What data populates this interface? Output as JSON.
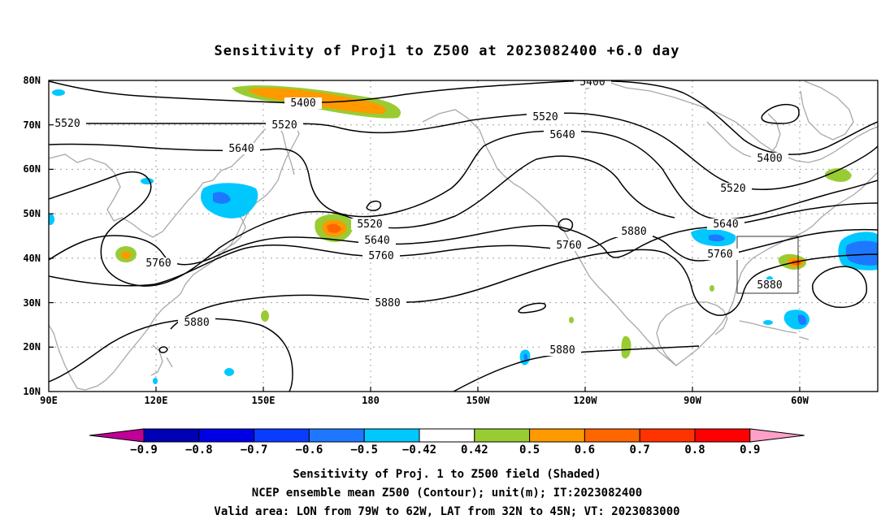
{
  "title": "Sensitivity of Proj1 to Z500 at 2023082400 +6.0 day",
  "lat_labels": [
    "80N",
    "70N",
    "60N",
    "50N",
    "40N",
    "30N",
    "20N",
    "10N"
  ],
  "lon_labels": [
    "90E",
    "120E",
    "150E",
    "180",
    "150W",
    "120W",
    "90W",
    "60W"
  ],
  "contour_labels": [
    "5400",
    "5400",
    "5400",
    "5520",
    "5520",
    "5520",
    "5520",
    "5520",
    "5640",
    "5640",
    "5640",
    "5640",
    "5760",
    "5760",
    "5760",
    "5760",
    "5880",
    "5880",
    "5880",
    "5880",
    "5880"
  ],
  "colorbar": {
    "tick_labels": [
      "-0.9",
      "-0.8",
      "-0.7",
      "-0.6",
      "-0.5",
      "-0.42",
      "0.42",
      "0.5",
      "0.6",
      "0.7",
      "0.8",
      "0.9"
    ],
    "colors": [
      "#c00096",
      "#0000b4",
      "#0000e6",
      "#0a3cff",
      "#1e78ff",
      "#00c8ff",
      "#ffffff",
      "#99cc33",
      "#ff9900",
      "#ff6600",
      "#ff3300",
      "#ff0000",
      "#ffa0c8"
    ]
  },
  "footer": {
    "line1": "Sensitivity of Proj. 1 to Z500 field (Shaded)",
    "line2": "NCEP ensemble mean Z500 (Contour); unit(m); IT:2023082400",
    "line3": "Valid area: LON from 79W to 62W, LAT from 32N to 45N; VT: 2023083000"
  },
  "colors": {
    "contour": "#000000",
    "coastline": "#a8a8a8",
    "grid": "#a0a0a0"
  },
  "valid_area": {
    "lon": [
      "79W",
      "62W"
    ],
    "lat": [
      "32N",
      "45N"
    ]
  }
}
